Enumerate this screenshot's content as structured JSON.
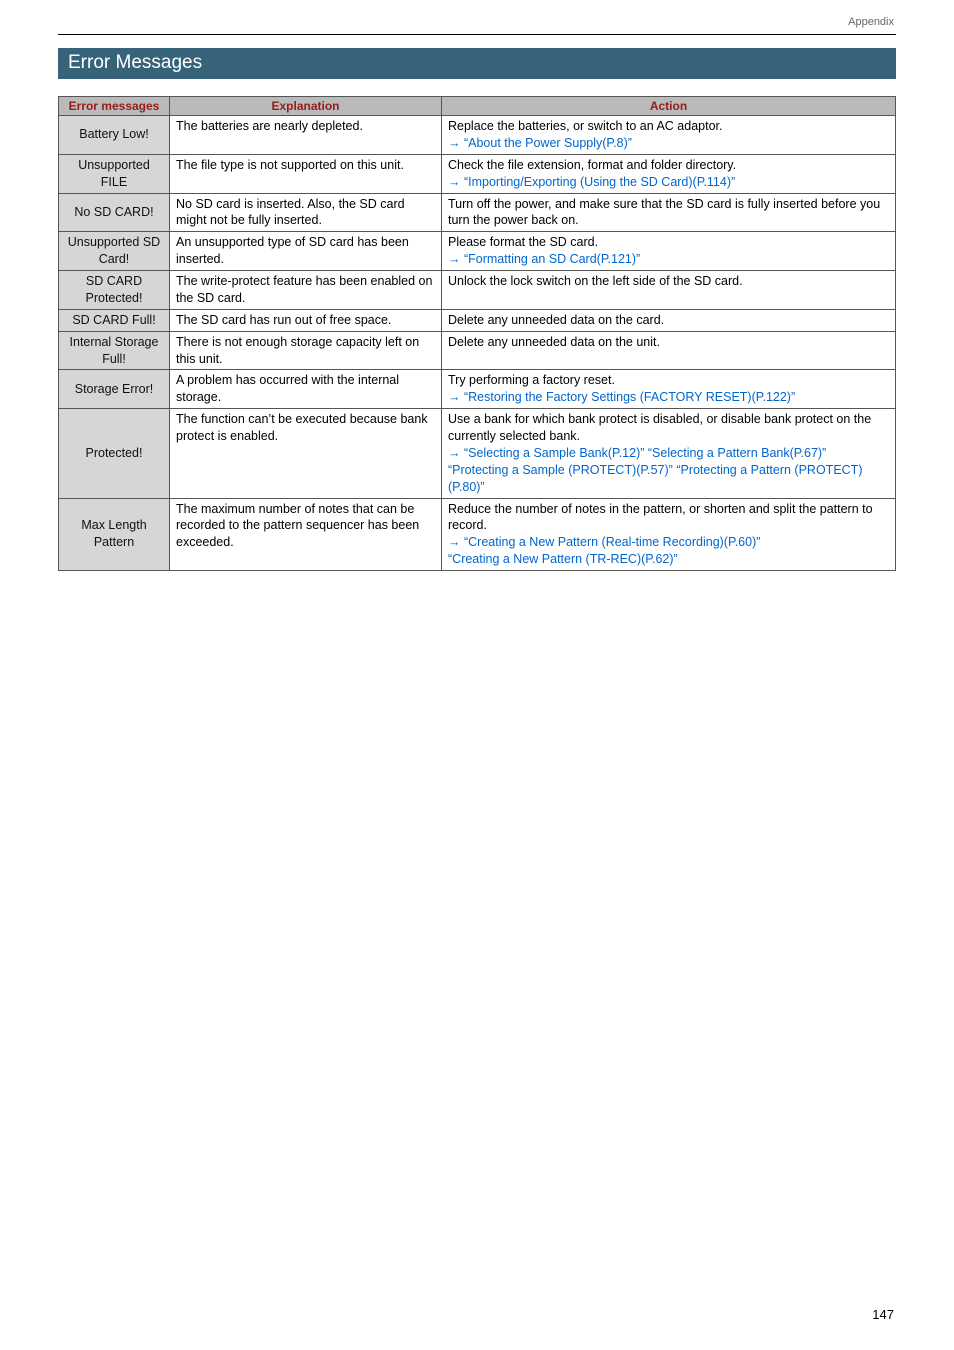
{
  "header": {
    "section_label": "Appendix"
  },
  "section_title": "Error Messages",
  "table": {
    "headers": {
      "col1": "Error messages",
      "col2": "Explanation",
      "col3": "Action"
    },
    "rows": [
      {
        "label": "Battery Low!",
        "explanation": "The batteries are nearly depleted.",
        "action_plain": "Replace the batteries, or switch to an AC adaptor.",
        "action_link": "“About the Power Supply(P.8)”"
      },
      {
        "label": "Unsupported FILE",
        "explanation": "The file type is not supported on this unit.",
        "action_plain": "Check the file extension, format and folder directory.",
        "action_link": "“Importing/Exporting (Using the SD Card)(P.114)”"
      },
      {
        "label": "No SD CARD!",
        "explanation": "No SD card is inserted. Also, the SD card might not be fully inserted.",
        "action_plain": "Turn off the power, and make sure that the SD card is fully inserted before you turn the power back on."
      },
      {
        "label": "Unsupported SD Card!",
        "explanation": "An unsupported type of SD card has been inserted.",
        "action_plain": "Please format the SD card.",
        "action_link": "“Formatting an SD Card(P.121)”"
      },
      {
        "label": "SD CARD Protected!",
        "explanation": "The write-protect feature has been enabled on the SD card.",
        "action_plain": "Unlock the lock switch on the left side of the SD card."
      },
      {
        "label": "SD CARD Full!",
        "explanation": "The SD card has run out of free space.",
        "action_plain": "Delete any unneeded data on the card."
      },
      {
        "label": "Internal Storage Full!",
        "explanation": "There is not enough storage capacity left on this unit.",
        "action_plain": "Delete any unneeded data on the unit."
      },
      {
        "label": "Storage Error!",
        "explanation": "A problem has occurred with the internal storage.",
        "action_plain": "Try performing a factory reset.",
        "action_link": "“Restoring the Factory Settings (FACTORY RESET)(P.122)”"
      },
      {
        "label": "Protected!",
        "explanation": "The function can’t be executed because bank protect is enabled.",
        "action_plain": "Use a bank for which bank protect is disabled, or disable bank protect on the currently selected bank.",
        "protected_links": {
          "a": "“Selecting a Sample Bank(P.12)”",
          "b": " “Selecting a Pattern Bank(P.67)”",
          "c": " “Protecting a Sample (PROTECT)(P.57)”",
          "d": " “Protecting a Pattern (PROTECT)(P.80)”"
        }
      },
      {
        "label": "Max Length Pattern",
        "explanation": "The maximum number of notes that can be recorded to the pattern sequencer has been exceeded.",
        "action_plain": "Reduce the number of notes in the pattern, or shorten and split the pattern to record.",
        "action_link": "“Creating a New Pattern (Real-time Recording)(P.60)”",
        "action_link2": "“Creating a New Pattern (TR-REC)(P.62)”"
      }
    ]
  },
  "page_number": "147"
}
